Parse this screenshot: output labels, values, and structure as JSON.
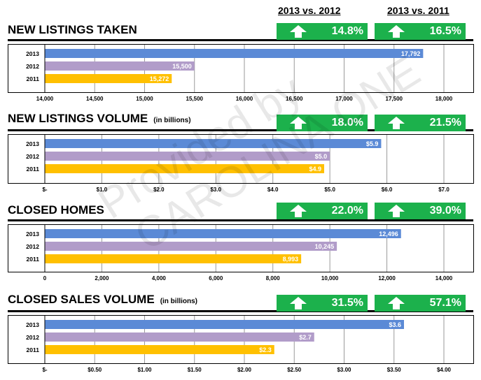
{
  "headers": {
    "col1": "2013 vs. 2012",
    "col2": "2013 vs. 2011"
  },
  "colors": {
    "2013": "#5b8ad6",
    "2012": "#b19cc9",
    "2011": "#ffc000",
    "badge": "#1cb14c"
  },
  "watermark": {
    "line1": "Provided by",
    "line2": "CAROLINA ONE"
  },
  "sections": [
    {
      "title": "NEW LISTINGS TAKEN",
      "subtitle": "",
      "change_vs_2012": "14.8%",
      "change_vs_2011": "16.5%"
    },
    {
      "title": "NEW LISTINGS VOLUME",
      "subtitle": "(in billions)",
      "change_vs_2012": "18.0%",
      "change_vs_2011": "21.5%"
    },
    {
      "title": "CLOSED HOMES",
      "subtitle": "",
      "change_vs_2012": "22.0%",
      "change_vs_2011": "39.0%"
    },
    {
      "title": "CLOSED SALES VOLUME",
      "subtitle": "(in billions)",
      "change_vs_2012": "31.5%",
      "change_vs_2011": "57.1%"
    }
  ],
  "chart_data": [
    {
      "type": "bar",
      "orientation": "horizontal",
      "categories": [
        "2013",
        "2012",
        "2011"
      ],
      "values": [
        17792,
        15500,
        15272
      ],
      "value_labels": [
        "17,792",
        "15,500",
        "15,272"
      ],
      "xlim": [
        14000,
        18000
      ],
      "ticks": [
        14000,
        14500,
        15000,
        15500,
        16000,
        16500,
        17000,
        17500,
        18000
      ],
      "tick_labels": [
        "14,000",
        "14,500",
        "15,000",
        "15,500",
        "16,000",
        "16,500",
        "17,000",
        "17,500",
        "18,000"
      ],
      "grid": true
    },
    {
      "type": "bar",
      "orientation": "horizontal",
      "categories": [
        "2013",
        "2012",
        "2011"
      ],
      "values": [
        5.9,
        5.0,
        4.9
      ],
      "value_labels": [
        "$5.9",
        "$5.0",
        "$4.9"
      ],
      "xlim": [
        0,
        7
      ],
      "ticks": [
        0,
        1,
        2,
        3,
        4,
        5,
        6,
        7
      ],
      "tick_labels": [
        "$-",
        "$1.0",
        "$2.0",
        "$3.0",
        "$4.0",
        "$5.0",
        "$6.0",
        "$7.0"
      ],
      "grid": true
    },
    {
      "type": "bar",
      "orientation": "horizontal",
      "categories": [
        "2013",
        "2012",
        "2011"
      ],
      "values": [
        12496,
        10245,
        8993
      ],
      "value_labels": [
        "12,496",
        "10,245",
        "8,993"
      ],
      "xlim": [
        0,
        14000
      ],
      "ticks": [
        0,
        2000,
        4000,
        6000,
        8000,
        10000,
        12000,
        14000
      ],
      "tick_labels": [
        "0",
        "2,000",
        "4,000",
        "6,000",
        "8,000",
        "10,000",
        "12,000",
        "14,000"
      ],
      "grid": true
    },
    {
      "type": "bar",
      "orientation": "horizontal",
      "categories": [
        "2013",
        "2012",
        "2011"
      ],
      "values": [
        3.6,
        2.7,
        2.3
      ],
      "value_labels": [
        "$3.6",
        "$2.7",
        "$2.3"
      ],
      "xlim": [
        0,
        4
      ],
      "ticks": [
        0,
        0.5,
        1,
        1.5,
        2,
        2.5,
        3,
        3.5,
        4
      ],
      "tick_labels": [
        "$-",
        "$0.50",
        "$1.00",
        "$1.50",
        "$2.00",
        "$2.50",
        "$3.00",
        "$3.50",
        "$4.00"
      ],
      "grid": true
    }
  ]
}
